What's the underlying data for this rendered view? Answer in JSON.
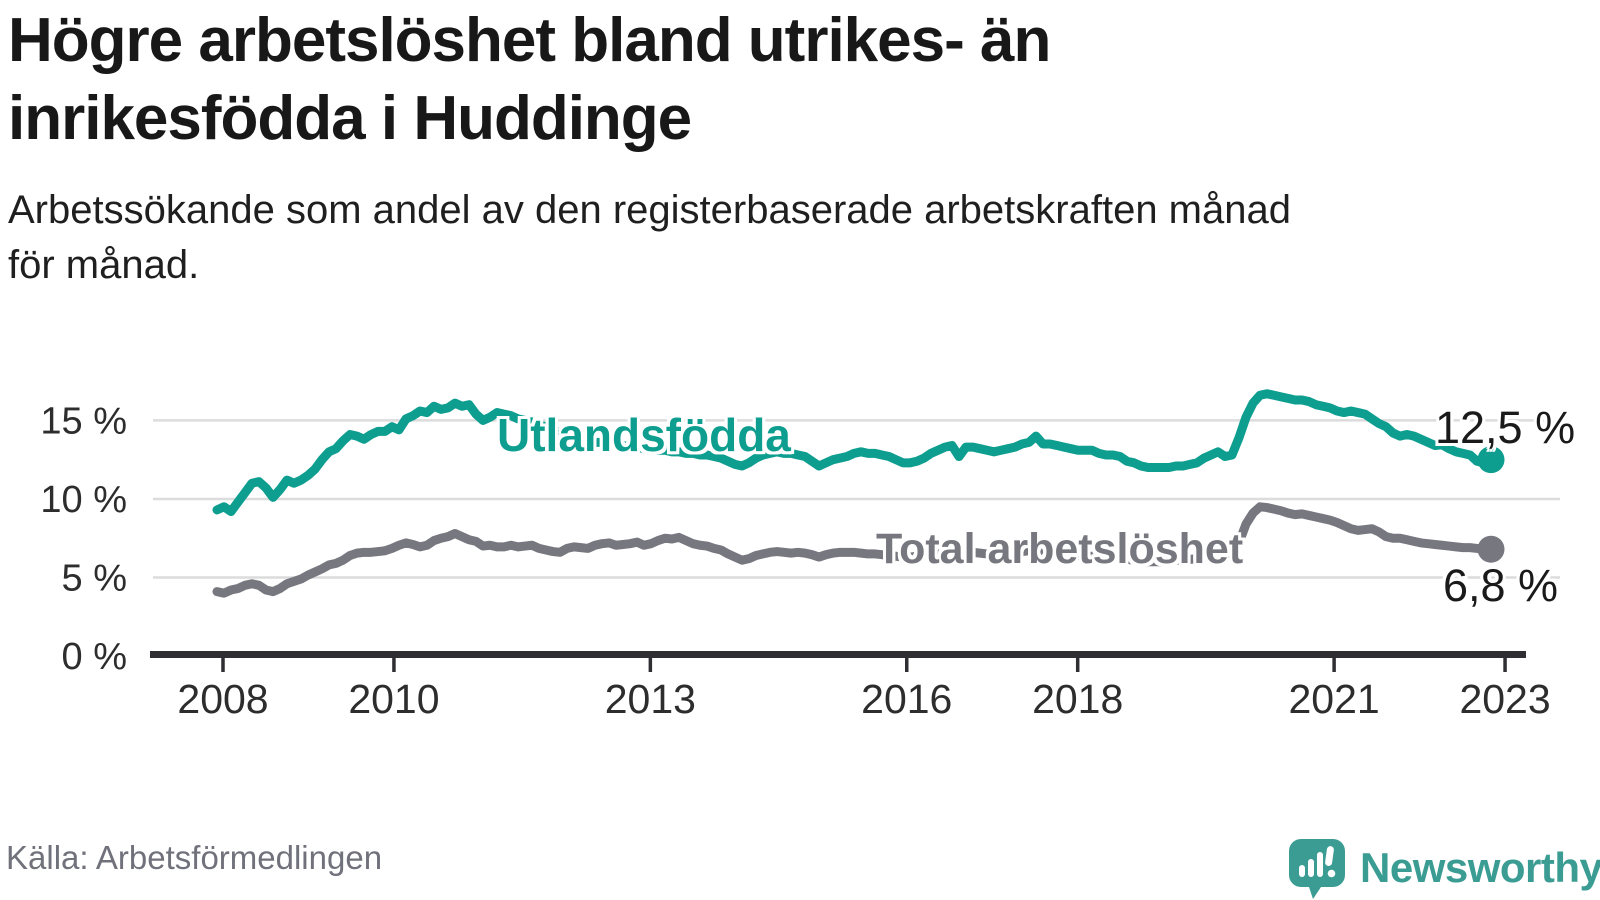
{
  "header": {
    "title_lines": [
      "Högre arbetslöshet bland utrikes- än",
      "inrikesfödda i Huddinge"
    ],
    "subtitle_lines": [
      "Arbetssökande som andel av den registerbaserade arbetskraften månad",
      "för månad."
    ]
  },
  "footer": {
    "source": "Källa: Arbetsförmedlingen",
    "brand": "Newsworthy"
  },
  "colors": {
    "utlandsfodda": "#0d9e8f",
    "total": "#77777f",
    "axis": "#2f2f33",
    "gridline": "#dcdcdc",
    "tick_label": "#2d2d2d",
    "value_label": "#1a1a1a",
    "logo_teal": "#3b9c93"
  },
  "chart_data": {
    "type": "line",
    "unit": "%",
    "x_start": "2008-01",
    "x_end": "2023-03",
    "x_ticks": [
      2008,
      2010,
      2013,
      2016,
      2018,
      2021,
      2023
    ],
    "y_ticks": [
      {
        "v": 0,
        "label": "0 %"
      },
      {
        "v": 5,
        "label": "5 %"
      },
      {
        "v": 10,
        "label": "10 %"
      },
      {
        "v": 15,
        "label": "15 %"
      }
    ],
    "ylim": [
      0,
      17.5
    ],
    "grid": true,
    "legend_position": "inline-on-line",
    "series": [
      {
        "name": "Utlandsfödda",
        "color": "#0d9e8f",
        "end_value_label": "12,5 %",
        "values": [
          9.3,
          9.5,
          9.2,
          9.8,
          10.4,
          11.0,
          11.1,
          10.7,
          10.1,
          10.6,
          11.2,
          11.0,
          11.2,
          11.5,
          11.9,
          12.5,
          13.0,
          13.2,
          13.7,
          14.1,
          14.0,
          13.8,
          14.1,
          14.3,
          14.3,
          14.6,
          14.4,
          15.1,
          15.3,
          15.6,
          15.5,
          15.9,
          15.7,
          15.8,
          16.1,
          15.9,
          16.0,
          15.4,
          15.0,
          15.2,
          15.5,
          15.4,
          15.3,
          15.1,
          15.0,
          14.9,
          14.7,
          14.6,
          14.4,
          14.2,
          14.0,
          13.9,
          13.8,
          13.7,
          13.6,
          13.6,
          13.5,
          13.4,
          13.4,
          13.3,
          13.3,
          13.2,
          13.2,
          13.1,
          13.1,
          13.0,
          13.0,
          12.9,
          12.9,
          12.8,
          12.8,
          12.7,
          12.6,
          12.4,
          12.2,
          12.1,
          12.3,
          12.6,
          12.8,
          12.9,
          13.0,
          12.9,
          12.9,
          12.8,
          12.7,
          12.4,
          12.1,
          12.3,
          12.5,
          12.6,
          12.7,
          12.9,
          13.0,
          12.9,
          12.9,
          12.8,
          12.7,
          12.5,
          12.3,
          12.3,
          12.4,
          12.6,
          12.9,
          13.1,
          13.3,
          13.4,
          12.7,
          13.3,
          13.3,
          13.2,
          13.1,
          13.0,
          13.1,
          13.2,
          13.3,
          13.5,
          13.6,
          14.0,
          13.5,
          13.5,
          13.4,
          13.3,
          13.2,
          13.1,
          13.1,
          13.1,
          12.9,
          12.8,
          12.8,
          12.7,
          12.4,
          12.3,
          12.1,
          12.0,
          12.0,
          12.0,
          12.0,
          12.1,
          12.1,
          12.2,
          12.3,
          12.6,
          12.8,
          13.0,
          12.7,
          12.8,
          13.9,
          15.2,
          16.1,
          16.6,
          16.7,
          16.6,
          16.5,
          16.4,
          16.3,
          16.3,
          16.2,
          16.0,
          15.9,
          15.8,
          15.6,
          15.5,
          15.6,
          15.5,
          15.4,
          15.1,
          14.8,
          14.6,
          14.2,
          14.0,
          14.1,
          14.0,
          13.8,
          13.6,
          13.4,
          13.45,
          13.2,
          13.0,
          12.9,
          12.8,
          12.4,
          12.3,
          12.5
        ]
      },
      {
        "name": "Total arbetslöshet",
        "color": "#77777f",
        "end_value_label": "6,8 %",
        "values": [
          4.1,
          4.0,
          4.2,
          4.3,
          4.5,
          4.6,
          4.5,
          4.2,
          4.1,
          4.3,
          4.6,
          4.75,
          4.9,
          5.15,
          5.35,
          5.55,
          5.8,
          5.9,
          6.1,
          6.4,
          6.55,
          6.6,
          6.6,
          6.65,
          6.7,
          6.85,
          7.05,
          7.2,
          7.1,
          6.95,
          7.05,
          7.35,
          7.5,
          7.6,
          7.8,
          7.6,
          7.4,
          7.3,
          7.0,
          7.05,
          6.95,
          6.95,
          7.05,
          6.95,
          7.0,
          7.05,
          6.85,
          6.75,
          6.65,
          6.6,
          6.85,
          6.95,
          6.9,
          6.85,
          7.05,
          7.15,
          7.2,
          7.05,
          7.1,
          7.15,
          7.25,
          7.05,
          7.15,
          7.35,
          7.5,
          7.45,
          7.55,
          7.35,
          7.15,
          7.05,
          7.0,
          6.85,
          6.75,
          6.5,
          6.3,
          6.1,
          6.2,
          6.4,
          6.5,
          6.6,
          6.65,
          6.6,
          6.55,
          6.6,
          6.55,
          6.45,
          6.3,
          6.45,
          6.55,
          6.6,
          6.6,
          6.6,
          6.55,
          6.5,
          6.5,
          6.45,
          6.4,
          6.35,
          6.3,
          6.3,
          6.35,
          6.4,
          6.45,
          6.5,
          6.55,
          6.6,
          6.5,
          6.55,
          6.6,
          6.55,
          6.5,
          6.45,
          6.5,
          6.55,
          6.6,
          6.65,
          6.7,
          6.75,
          6.65,
          6.6,
          6.55,
          6.5,
          6.45,
          6.4,
          6.35,
          6.35,
          6.3,
          6.25,
          6.25,
          6.2,
          6.15,
          6.1,
          6.05,
          6.0,
          6.0,
          6.0,
          6.05,
          6.1,
          6.1,
          6.15,
          6.2,
          6.3,
          6.4,
          6.5,
          6.4,
          6.5,
          7.2,
          8.4,
          9.1,
          9.5,
          9.45,
          9.35,
          9.25,
          9.1,
          9.0,
          9.05,
          8.95,
          8.85,
          8.75,
          8.65,
          8.5,
          8.3,
          8.1,
          8.0,
          8.05,
          8.1,
          7.9,
          7.6,
          7.5,
          7.5,
          7.4,
          7.3,
          7.2,
          7.15,
          7.1,
          7.05,
          7.0,
          6.95,
          6.9,
          6.9,
          6.85,
          6.8,
          6.8
        ]
      }
    ]
  }
}
